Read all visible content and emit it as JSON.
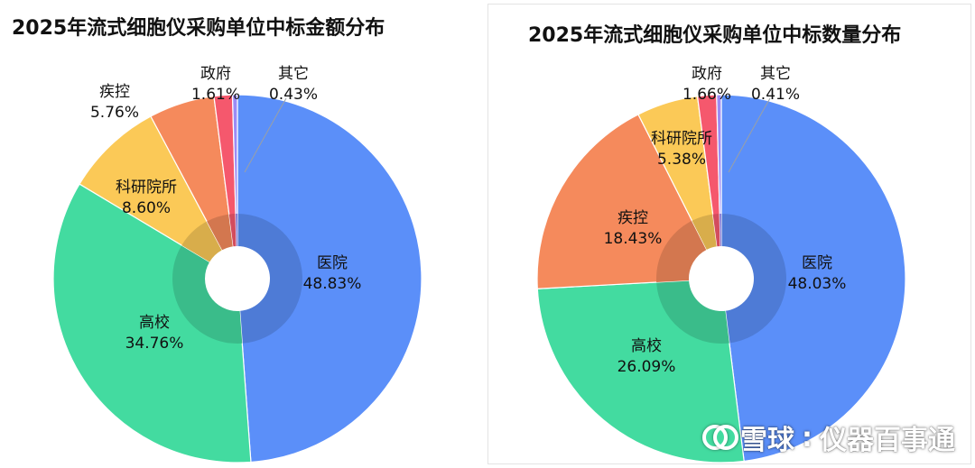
{
  "watermark": {
    "logo_icon": "snowball-logo-icon",
    "brand": "雪球",
    "sep": ":",
    "account": "仪器百事通"
  },
  "colors": {
    "hospital": "#5b8ff9",
    "university": "#43dba0",
    "research": "#fbc957",
    "cdc": "#f58a5c",
    "government": "#f5586d",
    "other": "#9b8cf5"
  },
  "chart_data": [
    {
      "type": "pie",
      "title": "2025年流式细胞仪采购单位中标金额分布",
      "slices": [
        {
          "label": "医院",
          "value": 48.83,
          "value_text": "48.83%"
        },
        {
          "label": "高校",
          "value": 34.76,
          "value_text": "34.76%"
        },
        {
          "label": "科研院所",
          "value": 8.6,
          "value_text": "8.60%"
        },
        {
          "label": "疾控",
          "value": 5.76,
          "value_text": "5.76%"
        },
        {
          "label": "政府",
          "value": 1.61,
          "value_text": "1.61%"
        },
        {
          "label": "其它",
          "value": 0.43,
          "value_text": "0.43%"
        }
      ]
    },
    {
      "type": "pie",
      "title": "2025年流式细胞仪采购单位中标数量分布",
      "slices": [
        {
          "label": "医院",
          "value": 48.03,
          "value_text": "48.03%"
        },
        {
          "label": "高校",
          "value": 26.09,
          "value_text": "26.09%"
        },
        {
          "label": "疾控",
          "value": 18.43,
          "value_text": "18.43%"
        },
        {
          "label": "科研院所",
          "value": 5.38,
          "value_text": "5.38%"
        },
        {
          "label": "政府",
          "value": 1.66,
          "value_text": "1.66%"
        },
        {
          "label": "其它",
          "value": 0.41,
          "value_text": "0.41%"
        }
      ]
    }
  ]
}
